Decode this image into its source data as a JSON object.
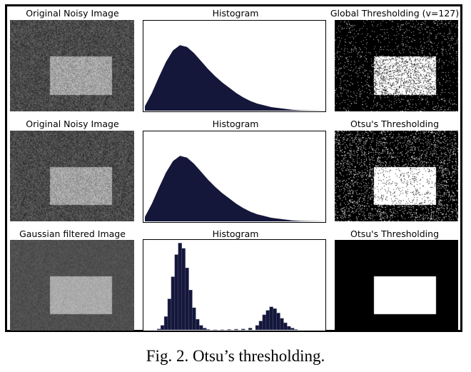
{
  "figure": {
    "caption": "Fig. 2. Otsu’s thresholding.",
    "rows": [
      {
        "titles": [
          "Original Noisy Image",
          "Histogram",
          "Global Thresholding (v=127)"
        ],
        "result": "global"
      },
      {
        "titles": [
          "Original Noisy Image",
          "Histogram",
          "Otsu's Thresholding"
        ],
        "result": "otsu"
      },
      {
        "titles": [
          "Gaussian filtered Image",
          "Histogram",
          "Otsu's Thresholding"
        ],
        "result": "otsu_filtered"
      }
    ],
    "colors": {
      "histogram_fill": "#14163a",
      "noisy_bg": "#4a4a4a",
      "noisy_rect": "#a4a4a4",
      "filtered_bg": "#4f4f4f",
      "filtered_rect": "#ababab",
      "black": "#000000",
      "white": "#ffffff"
    }
  },
  "chart_data": [
    {
      "type": "area",
      "title": "Histogram",
      "xlim": [
        0,
        255
      ],
      "x": [
        0,
        10,
        20,
        30,
        40,
        50,
        60,
        70,
        80,
        90,
        100,
        110,
        120,
        130,
        140,
        150,
        160,
        170,
        180,
        190,
        200,
        210,
        220,
        230,
        240,
        250,
        255
      ],
      "values": [
        0.05,
        0.2,
        0.38,
        0.55,
        0.68,
        0.74,
        0.72,
        0.65,
        0.56,
        0.47,
        0.39,
        0.32,
        0.26,
        0.2,
        0.15,
        0.11,
        0.08,
        0.06,
        0.04,
        0.03,
        0.02,
        0.01,
        0.005,
        0.003,
        0.002,
        0.001,
        0
      ]
    },
    {
      "type": "area",
      "title": "Histogram",
      "xlim": [
        0,
        255
      ],
      "x": [
        0,
        10,
        20,
        30,
        40,
        50,
        60,
        70,
        80,
        90,
        100,
        110,
        120,
        130,
        140,
        150,
        160,
        170,
        180,
        190,
        200,
        210,
        220,
        230,
        240,
        250,
        255
      ],
      "values": [
        0.05,
        0.2,
        0.38,
        0.55,
        0.68,
        0.74,
        0.72,
        0.65,
        0.56,
        0.47,
        0.39,
        0.32,
        0.26,
        0.2,
        0.15,
        0.11,
        0.08,
        0.06,
        0.04,
        0.03,
        0.02,
        0.01,
        0.005,
        0.003,
        0.002,
        0.001,
        0
      ]
    },
    {
      "type": "bar",
      "title": "Histogram",
      "xlim": [
        0,
        255
      ],
      "x": [
        20,
        25,
        30,
        35,
        40,
        45,
        50,
        55,
        60,
        65,
        70,
        75,
        80,
        85,
        90,
        100,
        110,
        120,
        130,
        140,
        150,
        160,
        165,
        170,
        175,
        180,
        185,
        190,
        195,
        200,
        205,
        210,
        215
      ],
      "values": [
        0.01,
        0.05,
        0.15,
        0.35,
        0.6,
        0.85,
        0.98,
        0.92,
        0.7,
        0.45,
        0.25,
        0.12,
        0.05,
        0.02,
        0.005,
        0.002,
        0.003,
        0.005,
        0.008,
        0.01,
        0.02,
        0.05,
        0.1,
        0.17,
        0.22,
        0.26,
        0.24,
        0.19,
        0.13,
        0.08,
        0.04,
        0.02,
        0.005
      ]
    }
  ]
}
